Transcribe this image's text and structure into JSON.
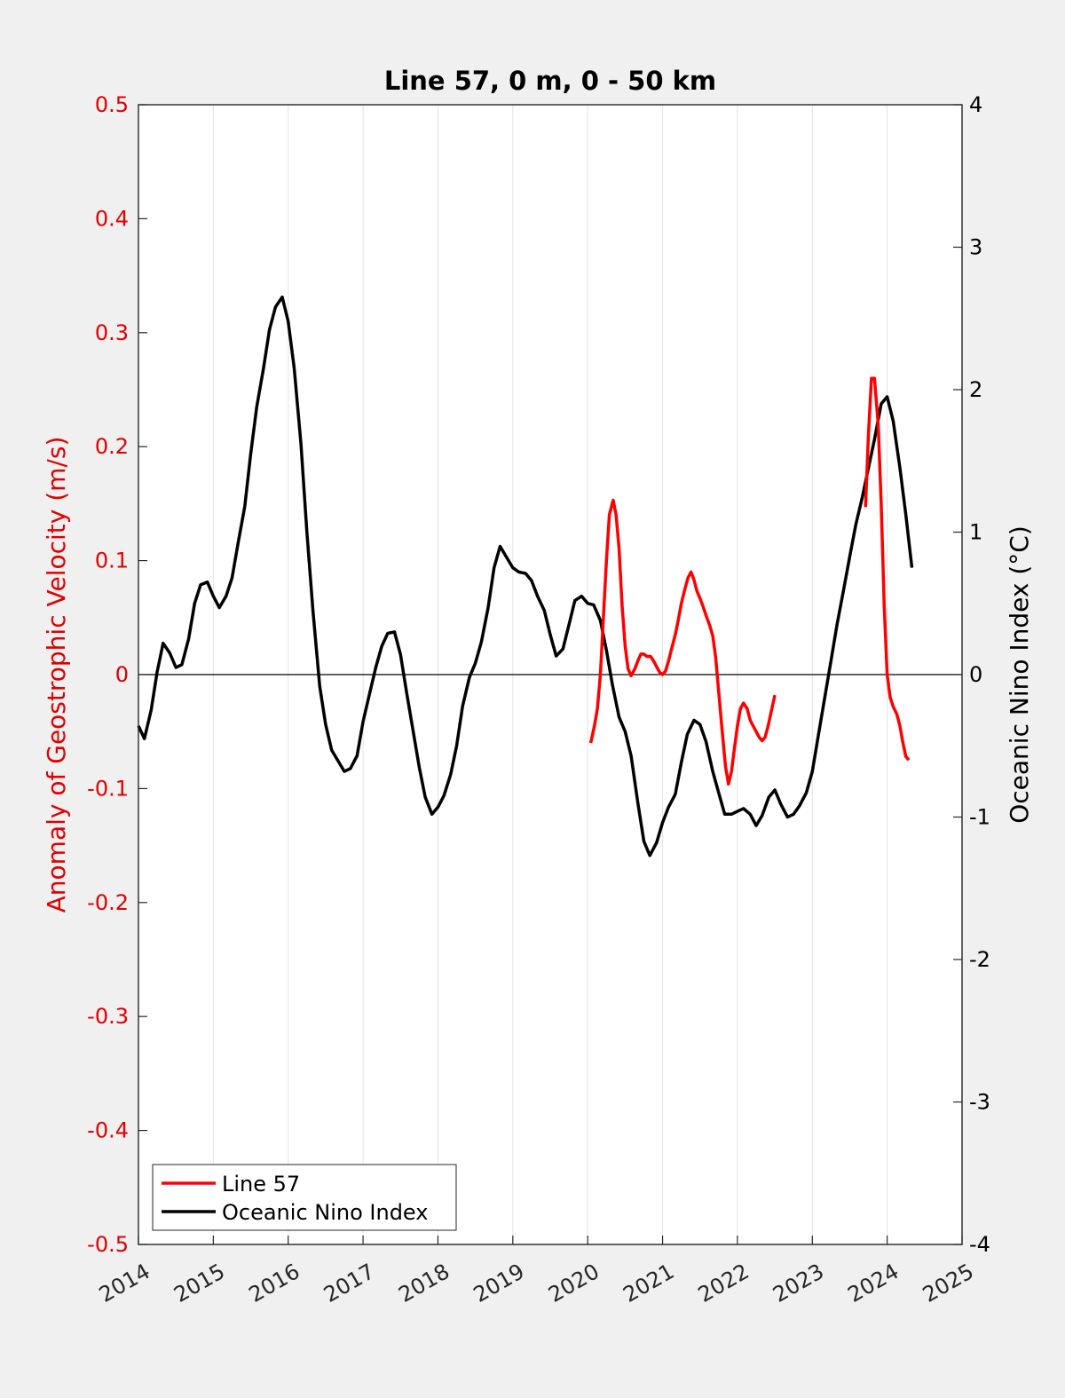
{
  "chart_data": {
    "type": "line",
    "title": "Line 57, 0 m, 0 - 50 km",
    "ylabel_left": "Anomaly of Geostrophic Velocity (m/s)",
    "ylabel_right": "Oceanic Nino Index (°C)",
    "xlim": [
      2014,
      2025
    ],
    "ylim_left": [
      -0.5,
      0.5
    ],
    "ylim_right": [
      -4,
      4
    ],
    "x_ticks": [
      "2014",
      "2015",
      "2016",
      "2017",
      "2018",
      "2019",
      "2020",
      "2021",
      "2022",
      "2023",
      "2024",
      "2025"
    ],
    "y_left_ticks": [
      "0.5",
      "0.4",
      "0.3",
      "0.2",
      "0.1",
      "0",
      "-0.1",
      "-0.2",
      "-0.3",
      "-0.4",
      "-0.5"
    ],
    "y_right_ticks": [
      "4",
      "3",
      "2",
      "1",
      "0",
      "-1",
      "-2",
      "-3",
      "-4"
    ],
    "grid": "vertical",
    "legend_placement": "bottom-left",
    "colors": {
      "line57": "#ff0000",
      "oni": "#000000",
      "left_axis": "#e00000",
      "background": "#f0f0f0",
      "plot_bg": "#ffffff"
    },
    "series": [
      {
        "name": "Line 57",
        "axis": "left",
        "segments": [
          [
            [
              2020.04,
              -0.06
            ],
            [
              2020.09,
              -0.045
            ],
            [
              2020.13,
              -0.03
            ],
            [
              2020.17,
              0.0
            ],
            [
              2020.21,
              0.05
            ],
            [
              2020.25,
              0.1
            ],
            [
              2020.29,
              0.14
            ],
            [
              2020.34,
              0.153
            ],
            [
              2020.38,
              0.14
            ],
            [
              2020.42,
              0.11
            ],
            [
              2020.46,
              0.06
            ],
            [
              2020.5,
              0.025
            ],
            [
              2020.54,
              0.005
            ],
            [
              2020.58,
              -0.001
            ],
            [
              2020.63,
              0.005
            ],
            [
              2020.67,
              0.012
            ],
            [
              2020.71,
              0.018
            ],
            [
              2020.75,
              0.018
            ],
            [
              2020.79,
              0.016
            ],
            [
              2020.84,
              0.016
            ],
            [
              2020.88,
              0.012
            ],
            [
              2020.92,
              0.007
            ],
            [
              2020.96,
              0.002
            ],
            [
              2021.0,
              0.0
            ],
            [
              2021.04,
              0.003
            ],
            [
              2021.08,
              0.012
            ],
            [
              2021.13,
              0.025
            ],
            [
              2021.17,
              0.035
            ],
            [
              2021.21,
              0.048
            ],
            [
              2021.25,
              0.062
            ],
            [
              2021.29,
              0.073
            ],
            [
              2021.34,
              0.085
            ],
            [
              2021.38,
              0.09
            ],
            [
              2021.42,
              0.083
            ],
            [
              2021.46,
              0.073
            ],
            [
              2021.5,
              0.067
            ],
            [
              2021.54,
              0.06
            ],
            [
              2021.58,
              0.052
            ],
            [
              2021.63,
              0.043
            ],
            [
              2021.67,
              0.034
            ],
            [
              2021.71,
              0.015
            ],
            [
              2021.75,
              -0.015
            ],
            [
              2021.79,
              -0.045
            ],
            [
              2021.84,
              -0.08
            ],
            [
              2021.88,
              -0.096
            ],
            [
              2021.92,
              -0.085
            ],
            [
              2021.96,
              -0.065
            ],
            [
              2022.0,
              -0.045
            ],
            [
              2022.04,
              -0.03
            ],
            [
              2022.08,
              -0.025
            ],
            [
              2022.13,
              -0.03
            ],
            [
              2022.17,
              -0.04
            ],
            [
              2022.21,
              -0.045
            ],
            [
              2022.25,
              -0.05
            ],
            [
              2022.29,
              -0.055
            ],
            [
              2022.33,
              -0.058
            ],
            [
              2022.37,
              -0.055
            ],
            [
              2022.41,
              -0.045
            ],
            [
              2022.46,
              -0.03
            ],
            [
              2022.5,
              -0.018
            ]
          ],
          [
            [
              2023.71,
              0.147
            ],
            [
              2023.75,
              0.21
            ],
            [
              2023.79,
              0.26
            ],
            [
              2023.83,
              0.26
            ],
            [
              2023.88,
              0.22
            ],
            [
              2023.92,
              0.15
            ],
            [
              2023.96,
              0.06
            ],
            [
              2024.0,
              0.0
            ],
            [
              2024.04,
              -0.02
            ],
            [
              2024.08,
              -0.028
            ],
            [
              2024.13,
              -0.035
            ],
            [
              2024.17,
              -0.045
            ],
            [
              2024.21,
              -0.06
            ],
            [
              2024.25,
              -0.072
            ],
            [
              2024.29,
              -0.075
            ]
          ]
        ]
      },
      {
        "name": "Oceanic Nino Index",
        "axis": "right",
        "points": [
          [
            2014.0,
            -0.36
          ],
          [
            2014.08,
            -0.45
          ],
          [
            2014.17,
            -0.25
          ],
          [
            2014.25,
            0.02
          ],
          [
            2014.33,
            0.22
          ],
          [
            2014.42,
            0.15
          ],
          [
            2014.5,
            0.05
          ],
          [
            2014.58,
            0.07
          ],
          [
            2014.67,
            0.25
          ],
          [
            2014.75,
            0.5
          ],
          [
            2014.83,
            0.63
          ],
          [
            2014.92,
            0.65
          ],
          [
            2015.0,
            0.55
          ],
          [
            2015.08,
            0.47
          ],
          [
            2015.17,
            0.55
          ],
          [
            2015.25,
            0.68
          ],
          [
            2015.33,
            0.92
          ],
          [
            2015.42,
            1.18
          ],
          [
            2015.5,
            1.55
          ],
          [
            2015.58,
            1.88
          ],
          [
            2015.67,
            2.15
          ],
          [
            2015.75,
            2.42
          ],
          [
            2015.83,
            2.58
          ],
          [
            2015.92,
            2.65
          ],
          [
            2016.0,
            2.48
          ],
          [
            2016.08,
            2.15
          ],
          [
            2016.17,
            1.62
          ],
          [
            2016.25,
            1.0
          ],
          [
            2016.33,
            0.45
          ],
          [
            2016.42,
            -0.08
          ],
          [
            2016.5,
            -0.35
          ],
          [
            2016.58,
            -0.53
          ],
          [
            2016.67,
            -0.61
          ],
          [
            2016.75,
            -0.68
          ],
          [
            2016.83,
            -0.66
          ],
          [
            2016.92,
            -0.57
          ],
          [
            2017.0,
            -0.33
          ],
          [
            2017.08,
            -0.15
          ],
          [
            2017.17,
            0.05
          ],
          [
            2017.25,
            0.2
          ],
          [
            2017.33,
            0.29
          ],
          [
            2017.42,
            0.3
          ],
          [
            2017.5,
            0.14
          ],
          [
            2017.58,
            -0.12
          ],
          [
            2017.67,
            -0.4
          ],
          [
            2017.75,
            -0.65
          ],
          [
            2017.83,
            -0.86
          ],
          [
            2017.92,
            -0.98
          ],
          [
            2018.0,
            -0.93
          ],
          [
            2018.08,
            -0.85
          ],
          [
            2018.17,
            -0.7
          ],
          [
            2018.25,
            -0.5
          ],
          [
            2018.33,
            -0.22
          ],
          [
            2018.42,
            -0.02
          ],
          [
            2018.5,
            0.08
          ],
          [
            2018.58,
            0.23
          ],
          [
            2018.67,
            0.47
          ],
          [
            2018.75,
            0.75
          ],
          [
            2018.83,
            0.9
          ],
          [
            2018.92,
            0.82
          ],
          [
            2019.0,
            0.75
          ],
          [
            2019.08,
            0.72
          ],
          [
            2019.17,
            0.71
          ],
          [
            2019.25,
            0.66
          ],
          [
            2019.33,
            0.55
          ],
          [
            2019.42,
            0.45
          ],
          [
            2019.5,
            0.28
          ],
          [
            2019.58,
            0.13
          ],
          [
            2019.67,
            0.18
          ],
          [
            2019.75,
            0.35
          ],
          [
            2019.83,
            0.52
          ],
          [
            2019.92,
            0.55
          ],
          [
            2020.0,
            0.5
          ],
          [
            2020.08,
            0.49
          ],
          [
            2020.17,
            0.38
          ],
          [
            2020.25,
            0.17
          ],
          [
            2020.33,
            -0.07
          ],
          [
            2020.42,
            -0.3
          ],
          [
            2020.5,
            -0.4
          ],
          [
            2020.58,
            -0.57
          ],
          [
            2020.67,
            -0.9
          ],
          [
            2020.75,
            -1.17
          ],
          [
            2020.83,
            -1.27
          ],
          [
            2020.92,
            -1.18
          ],
          [
            2021.0,
            -1.04
          ],
          [
            2021.08,
            -0.93
          ],
          [
            2021.17,
            -0.84
          ],
          [
            2021.25,
            -0.62
          ],
          [
            2021.33,
            -0.42
          ],
          [
            2021.42,
            -0.32
          ],
          [
            2021.5,
            -0.35
          ],
          [
            2021.58,
            -0.47
          ],
          [
            2021.67,
            -0.68
          ],
          [
            2021.75,
            -0.83
          ],
          [
            2021.83,
            -0.98
          ],
          [
            2021.92,
            -0.98
          ],
          [
            2022.0,
            -0.96
          ],
          [
            2022.08,
            -0.94
          ],
          [
            2022.17,
            -0.98
          ],
          [
            2022.25,
            -1.06
          ],
          [
            2022.33,
            -0.99
          ],
          [
            2022.42,
            -0.86
          ],
          [
            2022.5,
            -0.81
          ],
          [
            2022.58,
            -0.91
          ],
          [
            2022.67,
            -1.0
          ],
          [
            2022.75,
            -0.98
          ],
          [
            2022.83,
            -0.92
          ],
          [
            2022.92,
            -0.83
          ],
          [
            2023.0,
            -0.68
          ],
          [
            2023.08,
            -0.43
          ],
          [
            2023.17,
            -0.15
          ],
          [
            2023.25,
            0.1
          ],
          [
            2023.33,
            0.35
          ],
          [
            2023.42,
            0.6
          ],
          [
            2023.5,
            0.83
          ],
          [
            2023.58,
            1.05
          ],
          [
            2023.67,
            1.25
          ],
          [
            2023.75,
            1.45
          ],
          [
            2023.83,
            1.65
          ],
          [
            2023.92,
            1.9
          ],
          [
            2024.0,
            1.95
          ],
          [
            2024.08,
            1.78
          ],
          [
            2024.17,
            1.45
          ],
          [
            2024.25,
            1.12
          ],
          [
            2024.33,
            0.75
          ]
        ]
      }
    ],
    "reference_line": {
      "axis": "left",
      "value": 0
    }
  }
}
